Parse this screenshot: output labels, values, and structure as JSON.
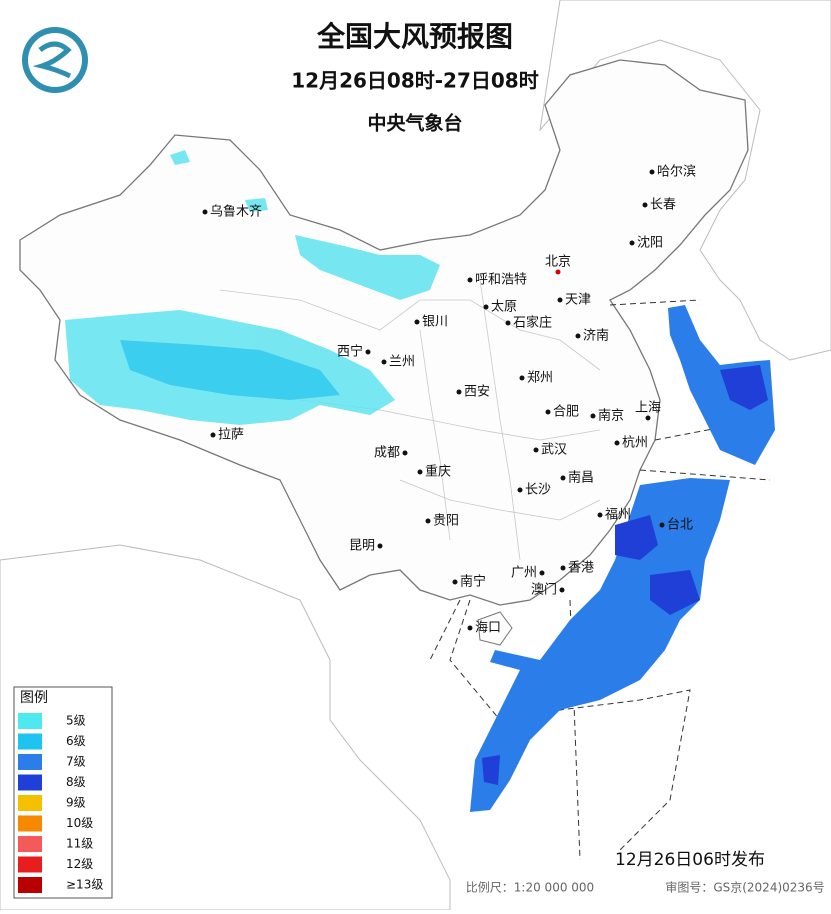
{
  "header": {
    "title": "全国大风预报图",
    "subtitle": "12月26日08时-27日08时",
    "issuer": "中央气象台"
  },
  "cities": [
    "乌鲁木齐",
    "哈尔滨",
    "长春",
    "沈阳",
    "北京",
    "呼和浩特",
    "天津",
    "太原",
    "石家庄",
    "银川",
    "济南",
    "西宁",
    "兰州",
    "郑州",
    "西安",
    "合肥",
    "南京",
    "上海",
    "拉萨",
    "杭州",
    "成都",
    "武汉",
    "重庆",
    "南昌",
    "长沙",
    "福州",
    "台北",
    "贵阳",
    "昆明",
    "广州",
    "香港",
    "澳门",
    "南宁",
    "海口"
  ],
  "legend": {
    "title": "图例",
    "items": [
      {
        "label": "5级",
        "color": "#4de8f0"
      },
      {
        "label": "6级",
        "color": "#1ec4ef"
      },
      {
        "label": "7级",
        "color": "#2b7de9"
      },
      {
        "label": "8级",
        "color": "#1f3fd6"
      },
      {
        "label": "9级",
        "color": "#f5c000"
      },
      {
        "label": "10级",
        "color": "#f58a00"
      },
      {
        "label": "11级",
        "color": "#f55a5a"
      },
      {
        "label": "12级",
        "color": "#e81e1e"
      },
      {
        "label": "≥13级",
        "color": "#b80000"
      }
    ]
  },
  "footer": {
    "published": "12月26日06时发布",
    "scale": "比例尺：1:20 000 000",
    "approval": "审图号：GS京(2024)0236号"
  }
}
